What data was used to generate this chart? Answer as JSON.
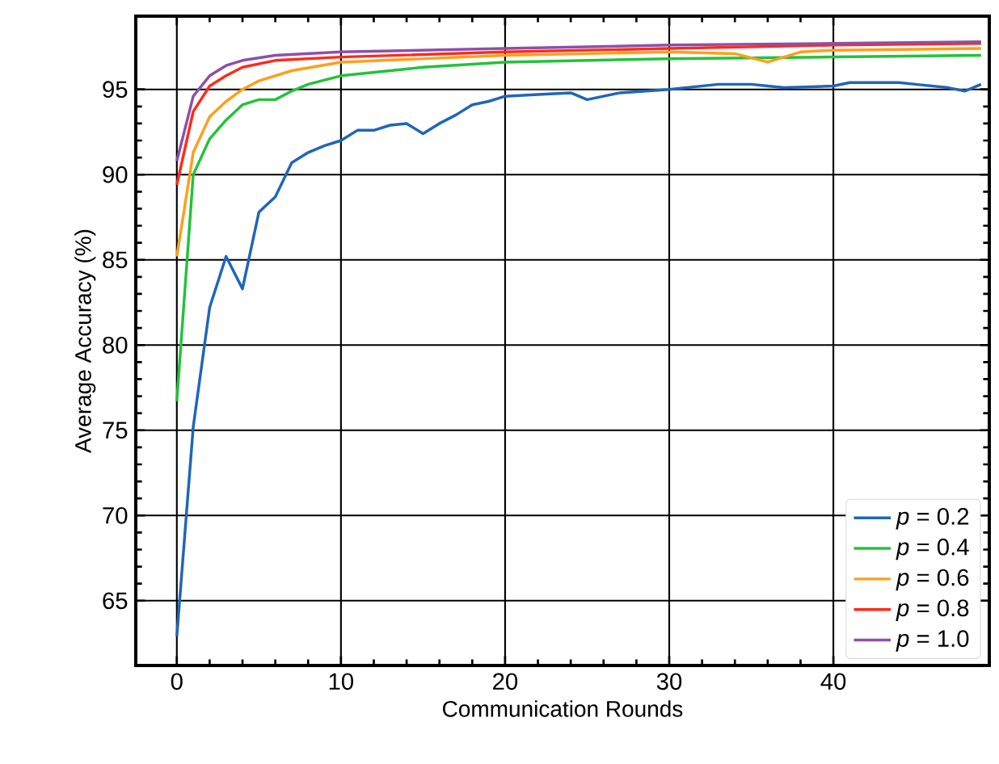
{
  "chart_data": {
    "type": "line",
    "xlabel": "Communication Rounds",
    "ylabel": "Average Accuracy (%)",
    "xlim": [
      -2.5,
      49.5
    ],
    "ylim": [
      61.2,
      99.3
    ],
    "xticks": [
      0,
      10,
      20,
      30,
      40
    ],
    "yticks": [
      65,
      70,
      75,
      80,
      85,
      90,
      95
    ],
    "grid": true,
    "legend": "bottom right",
    "marker": "none",
    "line_style": "solid",
    "series": [
      {
        "name": "*p* = 0.2",
        "color": "#1f66b8",
        "x": [
          0,
          1,
          2,
          3,
          4,
          5,
          6,
          7,
          8,
          9,
          10,
          11,
          12,
          13,
          14,
          15,
          16,
          17,
          18,
          19,
          20,
          22,
          24,
          25,
          27,
          30,
          33,
          35,
          36,
          37,
          40,
          41,
          44,
          45,
          47,
          48,
          49
        ],
        "values": [
          62.9,
          75.2,
          82.2,
          85.2,
          83.3,
          87.8,
          88.7,
          90.7,
          91.3,
          91.7,
          92.0,
          92.6,
          92.6,
          92.9,
          93.0,
          92.4,
          93.0,
          93.5,
          94.1,
          94.3,
          94.6,
          94.7,
          94.8,
          94.4,
          94.8,
          95.0,
          95.3,
          95.3,
          95.2,
          95.1,
          95.2,
          95.4,
          95.4,
          95.3,
          95.1,
          94.9,
          95.3
        ]
      },
      {
        "name": "*p* = 0.4",
        "color": "#22c33a",
        "x": [
          0,
          1,
          2,
          3,
          4,
          5,
          6,
          7,
          8,
          10,
          15,
          20,
          30,
          40,
          49
        ],
        "values": [
          76.7,
          90.0,
          92.1,
          93.2,
          94.1,
          94.4,
          94.4,
          94.9,
          95.3,
          95.8,
          96.3,
          96.6,
          96.8,
          96.9,
          97.0
        ]
      },
      {
        "name": "*p* = 0.6",
        "color": "#ff9f1a",
        "x": [
          0,
          1,
          2,
          3,
          4,
          5,
          7,
          10,
          20,
          30,
          34,
          36,
          38,
          40,
          49
        ],
        "values": [
          85.2,
          91.3,
          93.4,
          94.3,
          95.0,
          95.5,
          96.1,
          96.6,
          97.0,
          97.2,
          97.1,
          96.6,
          97.2,
          97.3,
          97.4
        ]
      },
      {
        "name": "*p* = 0.8",
        "color": "#ff2a1a",
        "x": [
          0,
          1,
          2,
          3,
          4,
          6,
          10,
          20,
          30,
          40,
          49
        ],
        "values": [
          89.4,
          93.7,
          95.2,
          95.8,
          96.3,
          96.7,
          96.9,
          97.2,
          97.4,
          97.6,
          97.7
        ]
      },
      {
        "name": "*p* = 1.0",
        "color": "#8e4fa8",
        "x": [
          0,
          1,
          2,
          3,
          4,
          6,
          10,
          20,
          30,
          40,
          49
        ],
        "values": [
          90.8,
          94.6,
          95.8,
          96.4,
          96.7,
          97.0,
          97.2,
          97.4,
          97.6,
          97.7,
          97.8
        ]
      }
    ]
  }
}
